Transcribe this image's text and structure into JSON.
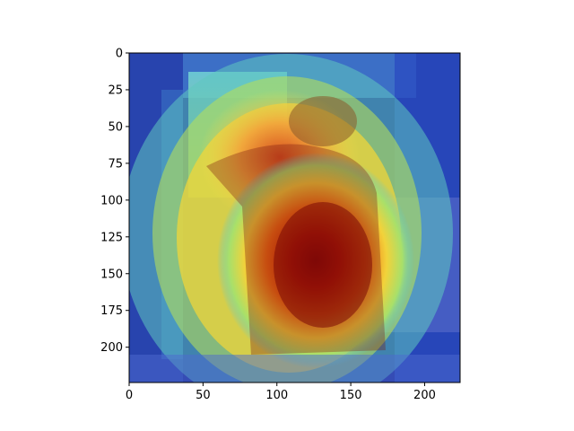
{
  "figure": {
    "background": "#ffffff"
  },
  "chart_data": {
    "type": "heatmap",
    "title": "",
    "xlabel": "",
    "ylabel": "",
    "image_size": [
      224,
      224
    ],
    "xlim": [
      0,
      224
    ],
    "ylim": [
      224,
      0
    ],
    "colormap": "jet",
    "grid": false,
    "legend": "none",
    "xticks": [
      0,
      50,
      100,
      150,
      200
    ],
    "yticks": [
      0,
      25,
      50,
      75,
      100,
      125,
      150,
      175,
      200
    ],
    "xtick_labels": [
      "0",
      "50",
      "100",
      "150",
      "200"
    ],
    "ytick_labels": [
      "0",
      "25",
      "50",
      "75",
      "100",
      "125",
      "150",
      "175",
      "200"
    ],
    "overlay": "Grad-CAM style activation heatmap blended over a photograph of a child standing in a doorway",
    "activation_peaks": [
      {
        "x": 130,
        "y": 145,
        "intensity": 1.0
      },
      {
        "x": 115,
        "y": 110,
        "intensity": 0.85
      },
      {
        "x": 105,
        "y": 75,
        "intensity": 0.6
      }
    ]
  }
}
